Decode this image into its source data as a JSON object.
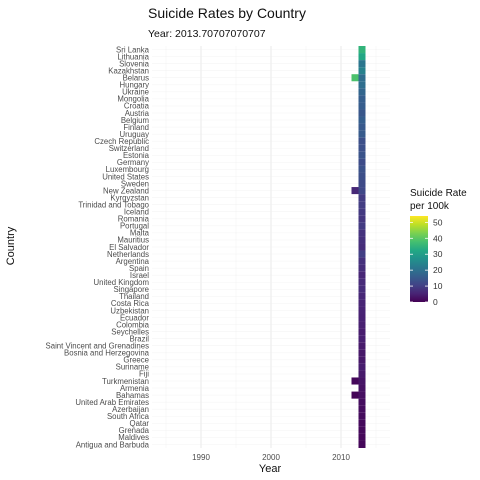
{
  "chart_data": {
    "type": "heatmap",
    "title": "Suicide Rates by Country",
    "subtitle": "Year: 2013.70707070707",
    "xlabel": "Year",
    "ylabel": "Country",
    "xlim": [
      1983,
      2017
    ],
    "x_ticks": [
      1990,
      2000,
      2010
    ],
    "grid": true,
    "legend": {
      "title_lines": [
        "Suicide Rate",
        "per 100k"
      ],
      "ticks": [
        0,
        10,
        20,
        30,
        40,
        50
      ],
      "range": [
        0,
        54
      ],
      "placement": "right",
      "palette": "viridis"
    },
    "countries": [
      "Sri Lanka",
      "Lithuania",
      "Slovenia",
      "Kazakhstan",
      "Belarus",
      "Hungary",
      "Ukraine",
      "Mongolia",
      "Croatia",
      "Austria",
      "Belgium",
      "Finland",
      "Uruguay",
      "Czech Republic",
      "Switzerland",
      "Estonia",
      "Germany",
      "Luxembourg",
      "United States",
      "Sweden",
      "New Zealand",
      "Kyrgyzstan",
      "Trinidad and Tobago",
      "Iceland",
      "Romania",
      "Portugal",
      "Malta",
      "Mauritius",
      "El Salvador",
      "Netherlands",
      "Argentina",
      "Spain",
      "Israel",
      "United Kingdom",
      "Singapore",
      "Thailand",
      "Costa Rica",
      "Uzbekistan",
      "Ecuador",
      "Colombia",
      "Seychelles",
      "Brazil",
      "Saint Vincent and Grenadines",
      "Bosnia and Herzegovina",
      "Greece",
      "Suriname",
      "Fiji",
      "Turkmenistan",
      "Armenia",
      "Bahamas",
      "United Arab Emirates",
      "Azerbaijan",
      "South Africa",
      "Qatar",
      "Grenada",
      "Maldives",
      "Antigua and Barbuda"
    ],
    "series": [
      {
        "x": 2013,
        "values": [
          35.0,
          32.2,
          21.1,
          23.5,
          19.2,
          19.5,
          17.6,
          16.0,
          15.8,
          14.5,
          16.0,
          15.0,
          15.3,
          12.9,
          13.2,
          13.8,
          12.4,
          13.5,
          13.0,
          12.0,
          11.5,
          9.5,
          9.6,
          9.0,
          8.5,
          9.3,
          8.0,
          7.5,
          7.0,
          10.0,
          7.5,
          7.0,
          5.8,
          6.5,
          6.8,
          5.9,
          5.5,
          5.2,
          5.0,
          4.8,
          4.2,
          4.5,
          3.8,
          3.5,
          3.5,
          4.2,
          3.8,
          3.0,
          2.5,
          2.2,
          1.8,
          1.7,
          1.5,
          1.3,
          1.2,
          1.0,
          0.9
        ]
      },
      {
        "x": 2012,
        "values": [
          null,
          null,
          null,
          null,
          38.5,
          null,
          null,
          null,
          null,
          null,
          null,
          null,
          null,
          null,
          null,
          null,
          null,
          null,
          null,
          null,
          6.0,
          null,
          null,
          null,
          null,
          null,
          null,
          null,
          null,
          null,
          null,
          null,
          null,
          null,
          null,
          null,
          null,
          null,
          null,
          null,
          null,
          null,
          null,
          null,
          null,
          null,
          null,
          1.0,
          null,
          0.4,
          null,
          null,
          null,
          null,
          null,
          null,
          null
        ]
      }
    ]
  }
}
